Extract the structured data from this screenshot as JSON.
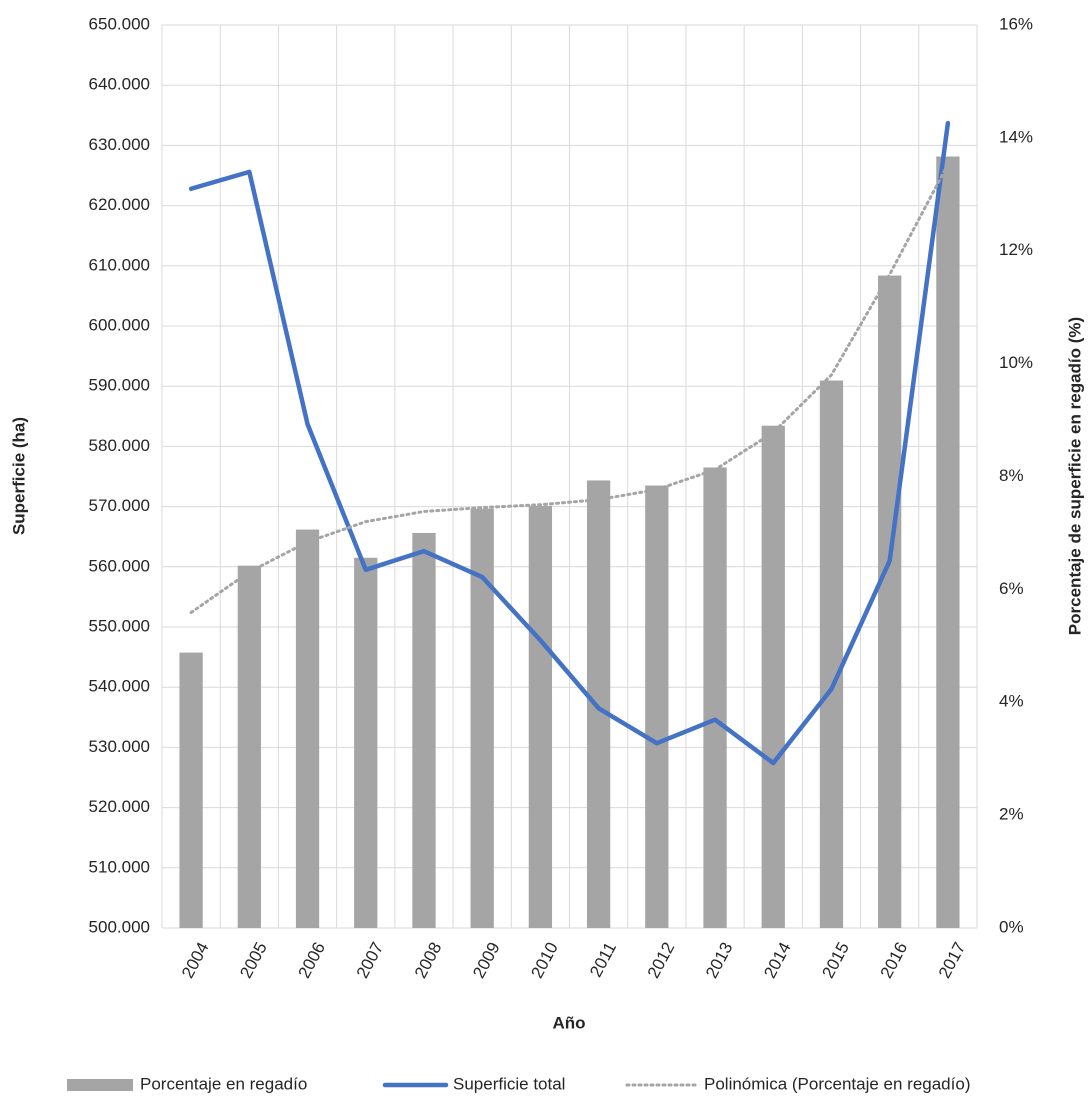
{
  "chart_data": {
    "type": "combo",
    "x_label": "Año",
    "y_label": "Superficie (ha)",
    "y2_label": "Porcentaje de superficie en regadío (%)",
    "categories": [
      "2004",
      "2005",
      "2006",
      "2007",
      "2008",
      "2009",
      "2010",
      "2011",
      "2012",
      "2013",
      "2014",
      "2015",
      "2016",
      "2017"
    ],
    "series": [
      {
        "name": "Porcentaje en regadío",
        "type": "bar",
        "axis": "y2",
        "color": "#a5a5a5",
        "values": [
          4.88,
          6.42,
          7.06,
          6.56,
          7.0,
          7.43,
          7.48,
          7.93,
          7.84,
          8.16,
          8.9,
          9.7,
          11.56,
          13.67
        ]
      },
      {
        "name": "Superficie total",
        "type": "line",
        "axis": "y",
        "color": "#4472c4",
        "values": [
          622800,
          625600,
          583700,
          559500,
          562600,
          558300,
          547800,
          536500,
          530700,
          534600,
          527400,
          539700,
          561000,
          633700
        ]
      },
      {
        "name": "Polinómica (Porcentaje en regadío)",
        "type": "line",
        "axis": "y2",
        "color": "#a5a5a5",
        "style": "dotted",
        "values": [
          5.59,
          6.31,
          6.84,
          7.2,
          7.38,
          7.45,
          7.5,
          7.59,
          7.77,
          8.12,
          8.78,
          9.8,
          11.58,
          13.53
        ]
      }
    ],
    "ylim": [
      500000,
      650000
    ],
    "yticks": [
      {
        "value": 500000,
        "label": "500.000"
      },
      {
        "value": 510000,
        "label": "510.000"
      },
      {
        "value": 520000,
        "label": "520.000"
      },
      {
        "value": 530000,
        "label": "530.000"
      },
      {
        "value": 540000,
        "label": "540.000"
      },
      {
        "value": 550000,
        "label": "550.000"
      },
      {
        "value": 560000,
        "label": "560.000"
      },
      {
        "value": 570000,
        "label": "570.000"
      },
      {
        "value": 580000,
        "label": "580.000"
      },
      {
        "value": 590000,
        "label": "590.000"
      },
      {
        "value": 600000,
        "label": "600.000"
      },
      {
        "value": 610000,
        "label": "610.000"
      },
      {
        "value": 620000,
        "label": "620.000"
      },
      {
        "value": 630000,
        "label": "630.000"
      },
      {
        "value": 640000,
        "label": "640.000"
      },
      {
        "value": 650000,
        "label": "650.000"
      }
    ],
    "y2lim": [
      0,
      16
    ],
    "y2ticks": [
      {
        "value": 0,
        "label": "0%"
      },
      {
        "value": 2,
        "label": "2%"
      },
      {
        "value": 4,
        "label": "4%"
      },
      {
        "value": 6,
        "label": "6%"
      },
      {
        "value": 8,
        "label": "8%"
      },
      {
        "value": 10,
        "label": "10%"
      },
      {
        "value": 12,
        "label": "12%"
      },
      {
        "value": 14,
        "label": "14%"
      },
      {
        "value": 16,
        "label": "16%"
      }
    ],
    "grid": true,
    "legend": "bottom"
  }
}
